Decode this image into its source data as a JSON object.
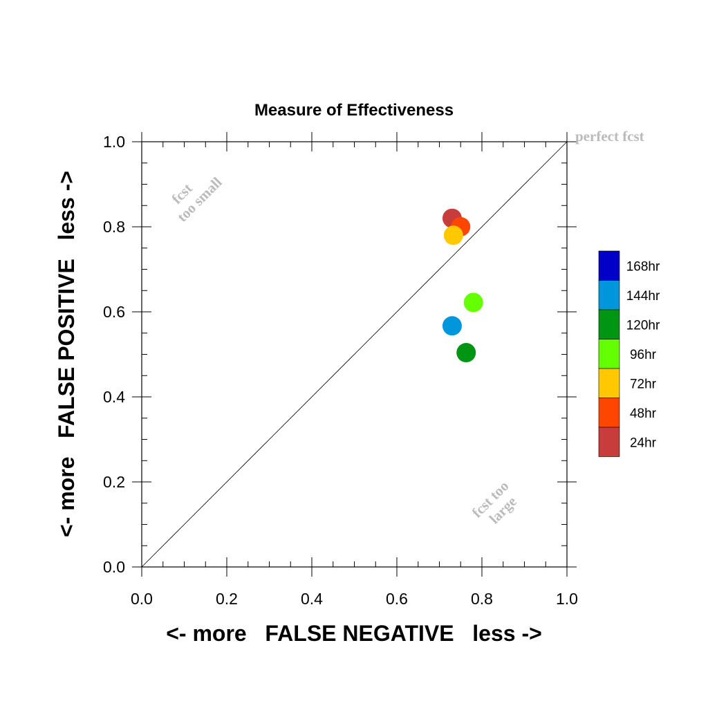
{
  "chart_data": {
    "type": "scatter",
    "title": "Measure of Effectiveness",
    "xlabel": "<- more   FALSE NEGATIVE   less ->",
    "ylabel": "<- more   FALSE POSITIVE   less ->",
    "xlim": [
      0.0,
      1.0
    ],
    "ylim": [
      0.0,
      1.0
    ],
    "xticks": [
      "0.0",
      "0.2",
      "0.4",
      "0.6",
      "0.8",
      "1.0"
    ],
    "yticks": [
      "0.0",
      "0.2",
      "0.4",
      "0.6",
      "0.8",
      "1.0"
    ],
    "grid": false,
    "legend_position": "right",
    "diagonal_line": true,
    "annotations": {
      "perfect": "perfect fcst",
      "small_line1": "fcst",
      "small_line2": "too small",
      "large_line1": "fcst too",
      "large_line2": "large"
    },
    "legend": [
      {
        "label": "168hr",
        "color": "#0000c8"
      },
      {
        "label": "144hr",
        "color": "#0096dc"
      },
      {
        "label": "120hr",
        "color": "#009614"
      },
      {
        "label": "96hr",
        "color": "#64ff00"
      },
      {
        "label": "72hr",
        "color": "#ffc800"
      },
      {
        "label": "48hr",
        "color": "#ff4600"
      },
      {
        "label": "24hr",
        "color": "#c83c3c"
      }
    ],
    "points": [
      {
        "series": "24hr",
        "x": 0.73,
        "y": 0.82,
        "color": "#c83c3c"
      },
      {
        "series": "48hr",
        "x": 0.75,
        "y": 0.8,
        "color": "#ff4600"
      },
      {
        "series": "72hr",
        "x": 0.733,
        "y": 0.78,
        "color": "#ffc800"
      },
      {
        "series": "96hr",
        "x": 0.78,
        "y": 0.622,
        "color": "#64ff00"
      },
      {
        "series": "144hr",
        "x": 0.73,
        "y": 0.567,
        "color": "#0096dc"
      },
      {
        "series": "120hr",
        "x": 0.763,
        "y": 0.504,
        "color": "#009614"
      }
    ]
  }
}
